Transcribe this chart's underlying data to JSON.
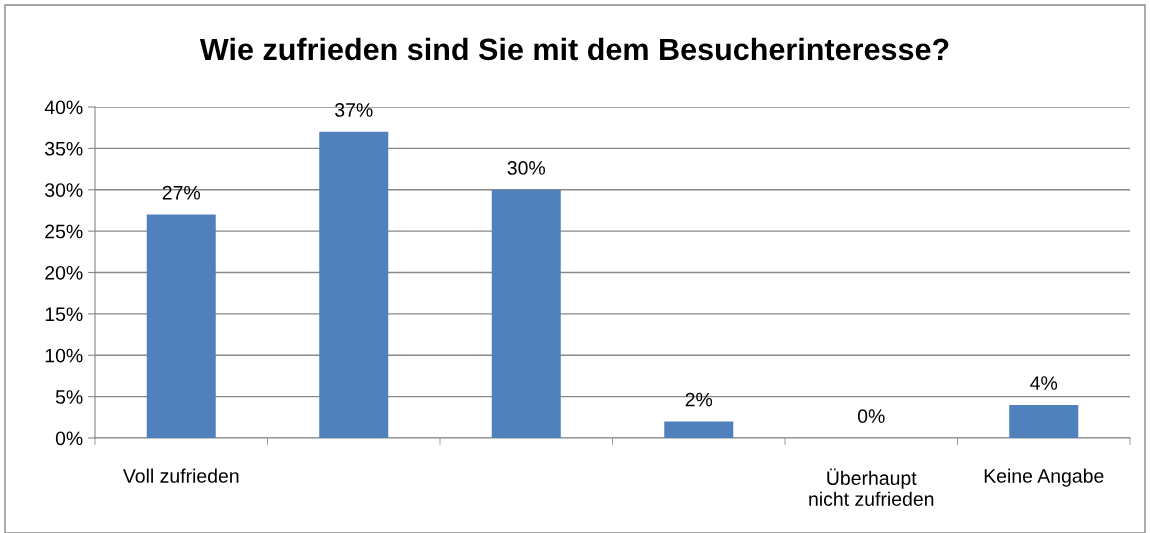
{
  "chart_data": {
    "type": "bar",
    "title": "Wie zufrieden sind Sie mit dem Besucherinteresse?",
    "categories": [
      "Voll zufrieden",
      null,
      null,
      null,
      "Überhaupt\nnicht zufrieden",
      "Keine Angabe"
    ],
    "values": [
      27,
      37,
      30,
      2,
      0,
      4
    ],
    "value_labels": [
      "27%",
      "37%",
      "30%",
      "2%",
      "0%",
      "4%"
    ],
    "color": "#4f81bd",
    "ylim": [
      0,
      40
    ],
    "yticks": [
      {
        "value": 0,
        "label": "0%"
      },
      {
        "value": 5,
        "label": "5%"
      },
      {
        "value": 10,
        "label": "10%"
      },
      {
        "value": 15,
        "label": "15%"
      },
      {
        "value": 20,
        "label": "20%"
      },
      {
        "value": 25,
        "label": "25%"
      },
      {
        "value": 30,
        "label": "30%"
      },
      {
        "value": 35,
        "label": "35%"
      },
      {
        "value": 40,
        "label": "40%"
      }
    ],
    "grid": "y",
    "legend": false
  }
}
